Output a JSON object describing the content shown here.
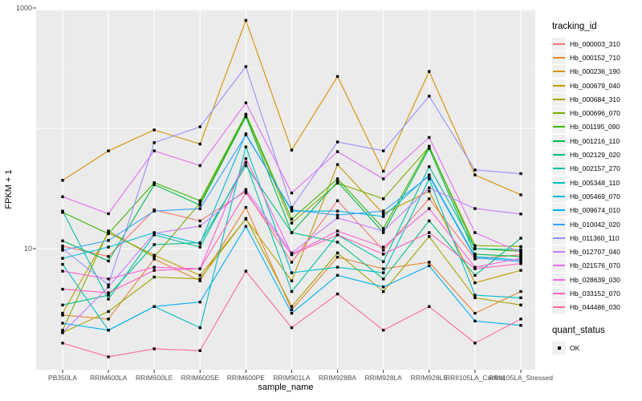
{
  "chart_data": {
    "type": "line",
    "xlabel": "sample_name",
    "ylabel": "FPKM + 1",
    "y_scale": "log10",
    "ylim": [
      1,
      1000
    ],
    "grid": true,
    "legend_position": "right",
    "y_ticks": [
      {
        "value": 1000,
        "label": "1000"
      },
      {
        "value": 10,
        "label": "10"
      }
    ],
    "y_major_gridlines": [
      1000,
      100,
      10
    ],
    "y_minor_gridlines": [
      316.23,
      31.62,
      3.16
    ],
    "categories": [
      "PB350LA",
      "RRIM600LA",
      "RRIM600LE",
      "RRIM600SE",
      "RRIM600PE",
      "RRIM901LA",
      "RRIM928BA",
      "RRIM928LA",
      "RRIM928LE",
      "RRII105LA_Control",
      "RRII105LA_Stressed"
    ],
    "series": [
      {
        "name": "Hb_000003_310",
        "color": "#F8766D",
        "values": [
          10.5,
          8.6,
          21,
          17,
          30,
          7.7,
          25,
          9.7,
          26,
          8.2,
          8.9
        ]
      },
      {
        "name": "Hb_000152_710",
        "color": "#EA8331",
        "values": [
          2.8,
          2.6,
          8.2,
          5.4,
          22,
          3.1,
          8.5,
          6.8,
          7.7,
          2.9,
          4.4
        ]
      },
      {
        "name": "Hb_000236_190",
        "color": "#D89000",
        "values": [
          37,
          65,
          97,
          74,
          790,
          66,
          270,
          44,
          297,
          41,
          28
        ]
      },
      {
        "name": "Hb_000679_040",
        "color": "#C09B00",
        "values": [
          2.9,
          13.5,
          8.8,
          6.0,
          17.6,
          5.4,
          50,
          19.5,
          30,
          5.2,
          6.6
        ]
      },
      {
        "name": "Hb_000684_310",
        "color": "#A3A500",
        "values": [
          2.0,
          3.0,
          5.8,
          5.6,
          17.8,
          3.3,
          9.2,
          4.4,
          12.6,
          3.9,
          3.4
        ]
      },
      {
        "name": "Hb_000696_070",
        "color": "#7CAE00",
        "values": [
          2.1,
          14,
          8.5,
          24,
          128,
          16.3,
          35,
          26,
          70,
          10.6,
          10.4
        ]
      },
      {
        "name": "Hb_001195_090",
        "color": "#39B600",
        "values": [
          20,
          13.3,
          35.3,
          25,
          131,
          17.6,
          38,
          14.7,
          71,
          10.0,
          9.5
        ]
      },
      {
        "name": "Hb_001216_110",
        "color": "#00BB4E",
        "values": [
          11.6,
          7.9,
          34,
          23,
          125,
          13.6,
          36,
          13.6,
          68,
          9.0,
          8.6
        ]
      },
      {
        "name": "Hb_002129_020",
        "color": "#00BF7D",
        "values": [
          3.4,
          4.1,
          10.8,
          11.2,
          49,
          13.6,
          11.3,
          5.6,
          17,
          6.0,
          12.2
        ]
      },
      {
        "name": "Hb_002157_270",
        "color": "#00C1A3",
        "values": [
          20.5,
          3.8,
          13,
          10.3,
          52,
          4.4,
          13,
          7.8,
          48,
          10.0,
          9.8
        ]
      },
      {
        "name": "Hb_005348_110",
        "color": "#00BFC4",
        "values": [
          7.4,
          2.1,
          3.3,
          2.2,
          70,
          6.3,
          7.0,
          6.3,
          38,
          4.1,
          3.9
        ]
      },
      {
        "name": "Hb_005469_070",
        "color": "#00BAE0",
        "values": [
          8.3,
          10.3,
          13.6,
          11.0,
          90,
          20.5,
          20.5,
          18.5,
          41,
          8.6,
          8.0
        ]
      },
      {
        "name": "Hb_009674_010",
        "color": "#00B0F6",
        "values": [
          2.4,
          2.1,
          3.3,
          3.6,
          15.3,
          2.9,
          6.0,
          4.8,
          7.2,
          2.5,
          2.3
        ]
      },
      {
        "name": "Hb_010042_020",
        "color": "#35A2FF",
        "values": [
          9.7,
          11.7,
          20.5,
          21.5,
          88,
          21,
          19,
          20.5,
          40,
          8.4,
          7.8
        ]
      },
      {
        "name": "Hb_011360_110",
        "color": "#9590FF",
        "values": [
          10,
          5.0,
          76,
          103,
          326,
          22,
          77,
          65,
          185,
          45,
          42
        ]
      },
      {
        "name": "Hb_012707_040",
        "color": "#C77CFF",
        "values": [
          2.0,
          4.8,
          13.4,
          15.4,
          31,
          9.2,
          18,
          14,
          32,
          21.5,
          19.4
        ]
      },
      {
        "name": "Hb_021576_070",
        "color": "#E76BF3",
        "values": [
          27,
          19.5,
          65,
          49,
          163,
          29,
          64,
          38,
          84,
          13.6,
          9.3
        ]
      },
      {
        "name": "Hb_028639_030",
        "color": "#FA62DB",
        "values": [
          6.5,
          5.6,
          7.0,
          6.8,
          56,
          9.0,
          14,
          10.3,
          21.5,
          7.0,
          8.3
        ]
      },
      {
        "name": "Hb_033152_070",
        "color": "#FF62BC",
        "values": [
          4.6,
          4.3,
          6.6,
          6.8,
          29,
          8.9,
          13,
          9.0,
          13.6,
          6.8,
          7.5
        ]
      },
      {
        "name": "Hb_044486_030",
        "color": "#FF6A98",
        "values": [
          1.64,
          1.26,
          1.47,
          1.42,
          6.5,
          2.2,
          4.2,
          2.1,
          3.3,
          1.64,
          2.6
        ]
      }
    ],
    "legend": {
      "tracking_title": "tracking_id",
      "quant_title": "quant_status",
      "quant_items": [
        {
          "label": "OK"
        }
      ]
    },
    "style": {
      "panel_background": "#EBEBEB",
      "gridline_color": "#FFFFFF",
      "point_color": "#000000",
      "axis_text_color": "#4D4D4D",
      "tick_mark_color": "#333333"
    }
  }
}
